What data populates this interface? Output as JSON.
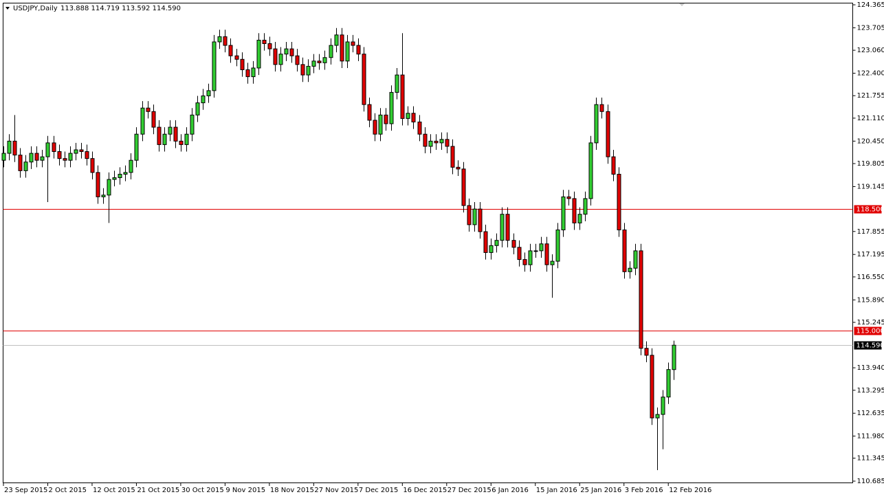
{
  "header": {
    "symbol": "USDJPY,Daily",
    "ohlc": "113.888 114.719 113.592 114.590"
  },
  "chart_data": {
    "type": "candlestick",
    "up_color": "#32cd32",
    "down_color": "#e00000",
    "outline_color": "#000000",
    "categories": [
      "23 Sep 2015",
      null,
      null,
      null,
      null,
      null,
      null,
      null,
      "2 Oct 2015",
      null,
      null,
      null,
      null,
      null,
      null,
      null,
      "12 Oct 2015",
      null,
      null,
      null,
      null,
      null,
      null,
      null,
      "21 Oct 2015",
      null,
      null,
      null,
      null,
      null,
      null,
      null,
      "30 Oct 2015",
      null,
      null,
      null,
      null,
      null,
      null,
      null,
      "9 Nov 2015",
      null,
      null,
      null,
      null,
      null,
      null,
      null,
      "18 Nov 2015",
      null,
      null,
      null,
      null,
      null,
      null,
      null,
      "27 Nov 2015",
      null,
      null,
      null,
      null,
      null,
      null,
      null,
      "7 Dec 2015",
      null,
      null,
      null,
      null,
      null,
      null,
      null,
      "16 Dec 2015",
      null,
      null,
      null,
      null,
      null,
      null,
      null,
      "27 Dec 2015",
      null,
      null,
      null,
      null,
      null,
      null,
      null,
      "6 Jan 2016",
      null,
      null,
      null,
      null,
      null,
      null,
      null,
      "15 Jan 2016",
      null,
      null,
      null,
      null,
      null,
      null,
      null,
      "25 Jan 2016",
      null,
      null,
      null,
      null,
      null,
      null,
      null,
      "3 Feb 2016",
      null,
      null,
      null,
      null,
      null,
      null,
      null,
      "12 Feb 2016",
      null
    ],
    "open": [
      119.9,
      120.1,
      120.45,
      120.05,
      119.6,
      119.85,
      120.1,
      119.9,
      120.0,
      120.4,
      120.15,
      119.95,
      119.9,
      120.1,
      120.2,
      120.15,
      119.95,
      119.55,
      118.85,
      118.9,
      119.35,
      119.4,
      119.5,
      119.55,
      119.9,
      120.65,
      121.4,
      121.3,
      120.85,
      120.35,
      120.65,
      120.85,
      120.45,
      120.35,
      120.65,
      121.2,
      121.55,
      121.75,
      121.9,
      123.3,
      123.45,
      123.2,
      122.9,
      122.8,
      122.5,
      122.3,
      122.55,
      123.35,
      123.25,
      123.1,
      122.65,
      122.95,
      123.1,
      122.9,
      122.65,
      122.35,
      122.6,
      122.75,
      122.7,
      122.85,
      123.2,
      123.5,
      122.75,
      123.3,
      123.2,
      122.95,
      121.5,
      121.05,
      120.65,
      121.2,
      120.95,
      121.85,
      122.35,
      121.1,
      121.25,
      121.0,
      120.65,
      120.3,
      120.45,
      120.4,
      120.5,
      120.3,
      119.7,
      119.65,
      118.6,
      118.05,
      118.5,
      117.85,
      117.25,
      117.45,
      117.6,
      118.35,
      117.6,
      117.4,
      117.05,
      116.9,
      117.3,
      117.3,
      117.5,
      116.9,
      117.0,
      117.9,
      118.85,
      118.8,
      118.1,
      118.35,
      118.8,
      120.4,
      121.5,
      121.3,
      120.0,
      119.5,
      117.9,
      116.7,
      116.8,
      117.3,
      114.5,
      114.3,
      112.5,
      112.6,
      113.1,
      113.888
    ],
    "high": [
      120.3,
      120.65,
      121.2,
      120.25,
      120.05,
      120.3,
      120.3,
      120.2,
      120.6,
      120.6,
      120.35,
      120.15,
      120.3,
      120.4,
      120.4,
      120.35,
      120.15,
      119.75,
      119.1,
      119.55,
      119.6,
      119.7,
      119.75,
      120.1,
      120.85,
      121.6,
      121.6,
      121.5,
      121.05,
      120.85,
      121.05,
      121.05,
      120.65,
      120.85,
      121.4,
      121.75,
      121.95,
      122.1,
      123.5,
      123.65,
      123.65,
      123.4,
      123.1,
      123.0,
      122.7,
      122.75,
      123.55,
      123.55,
      123.45,
      123.3,
      123.15,
      123.3,
      123.3,
      123.1,
      122.85,
      122.8,
      122.95,
      122.95,
      123.05,
      123.4,
      123.7,
      123.7,
      123.5,
      123.5,
      123.4,
      123.15,
      121.7,
      121.25,
      121.4,
      121.4,
      122.05,
      122.55,
      123.55,
      121.45,
      121.45,
      121.2,
      120.85,
      120.65,
      120.65,
      120.7,
      120.7,
      120.5,
      119.9,
      119.85,
      118.8,
      118.7,
      118.7,
      118.05,
      117.65,
      117.8,
      118.55,
      118.55,
      117.8,
      117.6,
      117.25,
      117.5,
      117.5,
      117.7,
      117.7,
      117.2,
      118.1,
      119.05,
      119.05,
      119.0,
      118.55,
      119.0,
      120.6,
      121.7,
      121.7,
      121.5,
      120.2,
      119.7,
      118.1,
      117.0,
      117.5,
      117.5,
      114.7,
      114.5,
      112.8,
      113.3,
      114.09,
      114.719
    ],
    "low": [
      119.7,
      119.9,
      119.85,
      119.4,
      119.4,
      119.65,
      119.7,
      119.7,
      118.7,
      119.95,
      119.75,
      119.7,
      119.7,
      119.9,
      119.95,
      119.75,
      119.35,
      118.65,
      118.65,
      118.1,
      119.15,
      119.2,
      119.3,
      119.35,
      119.7,
      120.45,
      121.1,
      120.65,
      120.15,
      120.15,
      120.45,
      120.25,
      120.15,
      120.15,
      120.45,
      121.0,
      121.35,
      121.55,
      121.7,
      123.1,
      123.0,
      122.7,
      122.6,
      122.3,
      122.1,
      122.1,
      122.35,
      123.05,
      122.9,
      122.45,
      122.45,
      122.75,
      122.7,
      122.45,
      122.15,
      122.15,
      122.4,
      122.5,
      122.5,
      122.65,
      123.0,
      122.55,
      122.55,
      123.0,
      122.75,
      121.3,
      120.85,
      120.45,
      120.45,
      120.75,
      120.75,
      121.65,
      120.9,
      120.9,
      120.8,
      120.45,
      120.1,
      120.1,
      120.2,
      120.2,
      120.1,
      119.5,
      119.45,
      118.4,
      117.85,
      117.85,
      117.65,
      117.05,
      117.05,
      117.25,
      117.4,
      117.4,
      117.2,
      116.85,
      116.7,
      116.7,
      117.1,
      117.1,
      116.7,
      115.95,
      116.8,
      117.7,
      118.6,
      117.9,
      117.9,
      118.15,
      118.6,
      120.2,
      121.1,
      119.8,
      119.3,
      117.7,
      116.5,
      116.5,
      116.6,
      114.3,
      114.1,
      112.3,
      111.0,
      111.6,
      112.9,
      113.592
    ],
    "close": [
      120.1,
      120.45,
      120.05,
      119.6,
      119.85,
      120.1,
      119.9,
      120.0,
      120.4,
      120.15,
      119.95,
      119.9,
      120.1,
      120.2,
      120.15,
      119.95,
      119.55,
      118.85,
      118.9,
      119.35,
      119.4,
      119.5,
      119.55,
      119.9,
      120.65,
      121.4,
      121.3,
      120.85,
      120.35,
      120.65,
      120.85,
      120.45,
      120.35,
      120.65,
      121.2,
      121.55,
      121.75,
      121.9,
      123.3,
      123.45,
      123.2,
      122.9,
      122.8,
      122.5,
      122.3,
      122.55,
      123.35,
      123.25,
      123.1,
      122.65,
      122.95,
      123.1,
      122.9,
      122.65,
      122.35,
      122.6,
      122.75,
      122.7,
      122.85,
      123.2,
      123.5,
      122.75,
      123.3,
      123.2,
      122.95,
      121.5,
      121.05,
      120.65,
      121.2,
      120.95,
      121.85,
      122.35,
      121.1,
      121.25,
      121.0,
      120.65,
      120.3,
      120.45,
      120.4,
      120.5,
      120.3,
      119.7,
      119.65,
      118.6,
      118.05,
      118.5,
      117.85,
      117.25,
      117.45,
      117.6,
      118.35,
      117.6,
      117.4,
      117.05,
      116.9,
      117.3,
      117.3,
      117.5,
      116.9,
      117.0,
      117.9,
      118.85,
      118.8,
      118.1,
      118.35,
      118.8,
      120.4,
      121.5,
      121.3,
      120.0,
      119.5,
      117.9,
      116.7,
      116.8,
      117.3,
      114.5,
      114.3,
      112.5,
      112.6,
      113.1,
      113.89,
      114.59
    ],
    "ylim": [
      110.685,
      124.365
    ],
    "yticks": [
      124.365,
      123.705,
      {
        "value": 123.06,
        "label": "123.060"
      },
      {
        "value": 122.4,
        "label": "122.400"
      },
      121.755,
      {
        "value": 121.11,
        "label": "121.110"
      },
      {
        "value": 120.45,
        "label": "120.450"
      },
      119.805,
      119.145,
      117.855,
      117.195,
      {
        "value": 116.55,
        "label": "116.550"
      },
      {
        "value": 115.89,
        "label": "115.890"
      },
      115.245,
      {
        "value": 113.94,
        "label": "113.940"
      },
      113.295,
      112.635,
      {
        "value": 111.98,
        "label": "111.980"
      },
      111.345,
      110.685
    ],
    "hlines": [
      {
        "value": 118.5,
        "label": "118.500",
        "color": "#e00000"
      },
      {
        "value": 115,
        "label": "115.000",
        "color": "#e00000"
      }
    ],
    "price_line": {
      "value": 114.59,
      "label": "114.590",
      "color": "#c0c0c0"
    },
    "grid": false
  }
}
